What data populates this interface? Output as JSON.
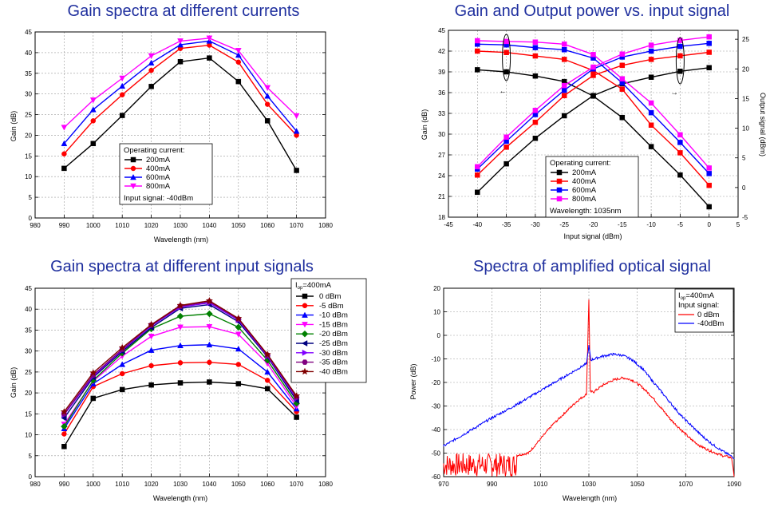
{
  "chart_data": [
    {
      "type": "line",
      "title": "Gain spectra at different currents",
      "xlabel": "Wavelength (nm)",
      "ylabel": "Gain (dB)",
      "xlim": [
        980,
        1080
      ],
      "ylim": [
        0,
        45
      ],
      "xticks": [
        980,
        990,
        1000,
        1010,
        1020,
        1030,
        1040,
        1050,
        1060,
        1070,
        1080
      ],
      "yticks": [
        0,
        5,
        10,
        15,
        20,
        25,
        30,
        35,
        40,
        45
      ],
      "x": [
        990,
        1000,
        1010,
        1020,
        1030,
        1040,
        1050,
        1060,
        1070
      ],
      "legend_title": "Operating current:",
      "legend_note": "Input signal: -40dBm",
      "series": [
        {
          "name": "200mA",
          "color": "#000000",
          "marker": "square",
          "values": [
            12,
            18,
            24.8,
            31.8,
            37.8,
            38.7,
            33,
            23.5,
            11.5
          ]
        },
        {
          "name": "400mA",
          "color": "#ff0000",
          "marker": "circle",
          "values": [
            15.5,
            23.5,
            29.8,
            35.7,
            41,
            41.8,
            37.7,
            27.5,
            20
          ]
        },
        {
          "name": "600mA",
          "color": "#0000ff",
          "marker": "triangle-up",
          "values": [
            18,
            26.2,
            31.9,
            37.5,
            41.9,
            42.8,
            39.4,
            29.5,
            21
          ]
        },
        {
          "name": "800mA",
          "color": "#ff00ff",
          "marker": "triangle-down",
          "values": [
            21.9,
            28.5,
            33.8,
            39.2,
            42.8,
            43.5,
            40.5,
            31.5,
            24.7
          ]
        }
      ]
    },
    {
      "type": "line",
      "title": "Gain and Output power vs. input signal",
      "xlabel": "Input signal (dBm)",
      "ylabel": "Gain (dB)",
      "y2label": "Output signal (dBm)",
      "xlim": [
        -45,
        5
      ],
      "ylim": [
        18,
        45
      ],
      "y2lim": [
        -5,
        26.5
      ],
      "xticks": [
        -45,
        -40,
        -35,
        -30,
        -25,
        -20,
        -15,
        -10,
        -5,
        0,
        5
      ],
      "yticks": [
        18,
        21,
        24,
        27,
        30,
        33,
        36,
        39,
        42,
        45
      ],
      "y2ticks": [
        -5,
        0,
        5,
        10,
        15,
        20,
        25
      ],
      "x": [
        -40,
        -35,
        -30,
        -25,
        -20,
        -15,
        -10,
        -5,
        0
      ],
      "legend_title": "Operating current:",
      "legend_note": "Wavelength: 1035nm",
      "series": [
        {
          "name": "200mA",
          "color": "#000000",
          "gain": [
            39.3,
            39,
            38.4,
            37.6,
            35.5,
            32.4,
            28.2,
            24.1,
            19.5
          ],
          "output": [
            -0.8,
            4,
            8.3,
            12.1,
            15.5,
            17.5,
            18.6,
            19.6,
            20.2
          ]
        },
        {
          "name": "400mA",
          "color": "#ff0000",
          "gain": [
            42,
            41.8,
            41.3,
            40.8,
            39.2,
            36.5,
            31.3,
            27.3,
            22.6
          ],
          "output": [
            2.1,
            6.8,
            11,
            15.5,
            18.9,
            20.6,
            21.6,
            22.2,
            22.8
          ]
        },
        {
          "name": "600mA",
          "color": "#0000ff",
          "gain": [
            43,
            42.9,
            42.5,
            42.2,
            41,
            37.4,
            33.1,
            28.8,
            24.3
          ],
          "output": [
            3.1,
            7.8,
            12.3,
            16.4,
            20,
            22,
            23,
            23.8,
            24.3
          ]
        },
        {
          "name": "800mA",
          "color": "#ff00ff",
          "gain": [
            43.5,
            43.4,
            43.3,
            43,
            41.5,
            38,
            34.5,
            29.9,
            25.1
          ],
          "output": [
            3.5,
            8.5,
            13,
            17.2,
            20.3,
            22.5,
            24,
            24.8,
            25.4
          ]
        }
      ]
    },
    {
      "type": "line",
      "title": "Gain spectra at different input signals",
      "xlabel": "Wavelength (nm)",
      "ylabel": "Gain (dB)",
      "xlim": [
        980,
        1080
      ],
      "ylim": [
        0,
        45
      ],
      "xticks": [
        980,
        990,
        1000,
        1010,
        1020,
        1030,
        1040,
        1050,
        1060,
        1070,
        1080
      ],
      "yticks": [
        0,
        5,
        10,
        15,
        20,
        25,
        30,
        35,
        40,
        45
      ],
      "x": [
        990,
        1000,
        1010,
        1020,
        1030,
        1040,
        1050,
        1060,
        1070
      ],
      "legend_title_main": "I",
      "legend_title_sub": "op",
      "legend_title_rest": "=400mA",
      "series": [
        {
          "name": "0 dBm",
          "color": "#000000",
          "marker": "square",
          "values": [
            7.2,
            18.7,
            20.8,
            21.9,
            22.4,
            22.6,
            22.2,
            21,
            14.2
          ]
        },
        {
          "name": "-5 dBm",
          "color": "#ff0000",
          "marker": "circle",
          "values": [
            10.2,
            21.5,
            24.6,
            26.5,
            27.2,
            27.3,
            26.8,
            23,
            15.5
          ]
        },
        {
          "name": "-10 dBm",
          "color": "#0000ff",
          "marker": "triangle-up",
          "values": [
            11.5,
            22.2,
            26.8,
            30.2,
            31.3,
            31.5,
            30.5,
            25,
            16.2
          ]
        },
        {
          "name": "-15 dBm",
          "color": "#ff00ff",
          "marker": "triangle-down",
          "values": [
            12.5,
            22.8,
            28.8,
            33.5,
            35.7,
            35.8,
            34,
            27,
            16.8
          ]
        },
        {
          "name": "-20 dBm",
          "color": "#008000",
          "marker": "diamond",
          "values": [
            12,
            23,
            29.5,
            35.3,
            38.3,
            38.9,
            35.7,
            27.8,
            17.5
          ]
        },
        {
          "name": "-25 dBm",
          "color": "#000080",
          "marker": "triangle-left",
          "values": [
            14,
            23.7,
            29.9,
            35.6,
            40.2,
            41.1,
            37,
            28.6,
            18.2
          ]
        },
        {
          "name": "-30 dBm",
          "color": "#8000ff",
          "marker": "triangle-right",
          "values": [
            14.8,
            24,
            30.2,
            36,
            40.5,
            41.5,
            37.4,
            28.8,
            18.7
          ]
        },
        {
          "name": "-35 dBm",
          "color": "#800080",
          "marker": "hexagon",
          "values": [
            15,
            24.3,
            30.4,
            36.2,
            40.7,
            41.8,
            37.6,
            29,
            19
          ]
        },
        {
          "name": "-40 dBm",
          "color": "#800000",
          "marker": "star",
          "values": [
            15.5,
            24.8,
            30.8,
            36.3,
            40.9,
            42,
            37.8,
            29.2,
            19.3
          ]
        }
      ]
    },
    {
      "type": "line",
      "title": "Spectra of amplified optical signal",
      "xlabel": "Wavelength (nm)",
      "ylabel": "Power (dB)",
      "xlim": [
        970,
        1090
      ],
      "ylim": [
        -60,
        20
      ],
      "xticks": [
        970,
        990,
        1010,
        1030,
        1050,
        1070,
        1090
      ],
      "yticks": [
        -60,
        -50,
        -40,
        -30,
        -20,
        -10,
        0,
        10,
        20
      ],
      "legend_title_main": "I",
      "legend_title_sub": "op",
      "legend_title_rest": "=400mA",
      "legend_note": "Input signal:",
      "series": [
        {
          "name": "0 dBm",
          "color": "#ff0000",
          "profile": [
            [
              970,
              -54
            ],
            [
              990,
              -53
            ],
            [
              1005,
              -50
            ],
            [
              1010,
              -44
            ],
            [
              1015,
              -38
            ],
            [
              1020,
              -33
            ],
            [
              1025,
              -28
            ],
            [
              1029,
              -25
            ],
            [
              1030,
              15
            ],
            [
              1030.6,
              -24
            ],
            [
              1032,
              -24
            ],
            [
              1036,
              -21
            ],
            [
              1040,
              -19
            ],
            [
              1044,
              -18
            ],
            [
              1048,
              -19
            ],
            [
              1052,
              -22
            ],
            [
              1056,
              -26
            ],
            [
              1060,
              -31
            ],
            [
              1064,
              -36
            ],
            [
              1068,
              -40
            ],
            [
              1072,
              -44
            ],
            [
              1076,
              -47
            ],
            [
              1080,
              -49
            ],
            [
              1085,
              -51
            ],
            [
              1089,
              -52
            ],
            [
              1090,
              -60
            ]
          ],
          "noise_until": 1000,
          "noise_floor": -60,
          "noise_top": -50
        },
        {
          "name": "-40dBm",
          "color": "#0000ff",
          "profile": [
            [
              970,
              -47
            ],
            [
              980,
              -41
            ],
            [
              990,
              -35
            ],
            [
              1000,
              -29.5
            ],
            [
              1010,
              -23.5
            ],
            [
              1020,
              -17.5
            ],
            [
              1025,
              -14.5
            ],
            [
              1029,
              -12
            ],
            [
              1030,
              -4.5
            ],
            [
              1030.8,
              -10.5
            ],
            [
              1035,
              -9
            ],
            [
              1040,
              -8
            ],
            [
              1044,
              -8.5
            ],
            [
              1048,
              -10.5
            ],
            [
              1052,
              -14
            ],
            [
              1056,
              -19
            ],
            [
              1060,
              -24
            ],
            [
              1064,
              -29
            ],
            [
              1068,
              -34
            ],
            [
              1072,
              -38
            ],
            [
              1076,
              -42
            ],
            [
              1080,
              -45.5
            ],
            [
              1085,
              -49
            ],
            [
              1090,
              -52
            ]
          ]
        }
      ]
    }
  ],
  "labels": {
    "arrow_left": "←",
    "arrow_right": "→"
  }
}
